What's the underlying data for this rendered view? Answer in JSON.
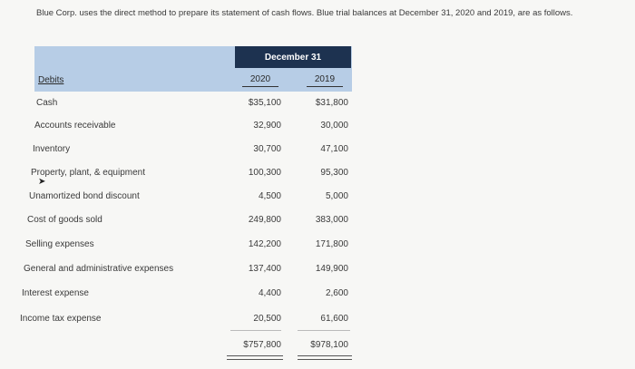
{
  "intro": "Blue Corp. uses the direct method to prepare its statement of cash flows. Blue trial balances at December 31, 2020 and 2019, are as follows.",
  "table": {
    "header": "December 31",
    "col_label": "Debits",
    "years": [
      "2020",
      "2019"
    ],
    "rows": [
      {
        "label": "Cash",
        "v2020": "$35,100",
        "v2019": "$31,800"
      },
      {
        "label": "Accounts receivable",
        "v2020": "32,900",
        "v2019": "30,000"
      },
      {
        "label": "Inventory",
        "v2020": "30,700",
        "v2019": "47,100"
      },
      {
        "label": "Property, plant, & equipment",
        "v2020": "100,300",
        "v2019": "95,300"
      },
      {
        "label": "Unamortized bond discount",
        "v2020": "4,500",
        "v2019": "5,000"
      },
      {
        "label": "Cost of goods sold",
        "v2020": "249,800",
        "v2019": "383,000"
      },
      {
        "label": "Selling expenses",
        "v2020": "142,200",
        "v2019": "171,800"
      },
      {
        "label": "General and administrative expenses",
        "v2020": "137,400",
        "v2019": "149,900"
      },
      {
        "label": "Interest expense",
        "v2020": "4,400",
        "v2019": "2,600"
      },
      {
        "label": "Income tax expense",
        "v2020": "20,500",
        "v2019": "61,600"
      }
    ],
    "totals": {
      "v2020": "$757,800",
      "v2019": "$978,100"
    }
  }
}
